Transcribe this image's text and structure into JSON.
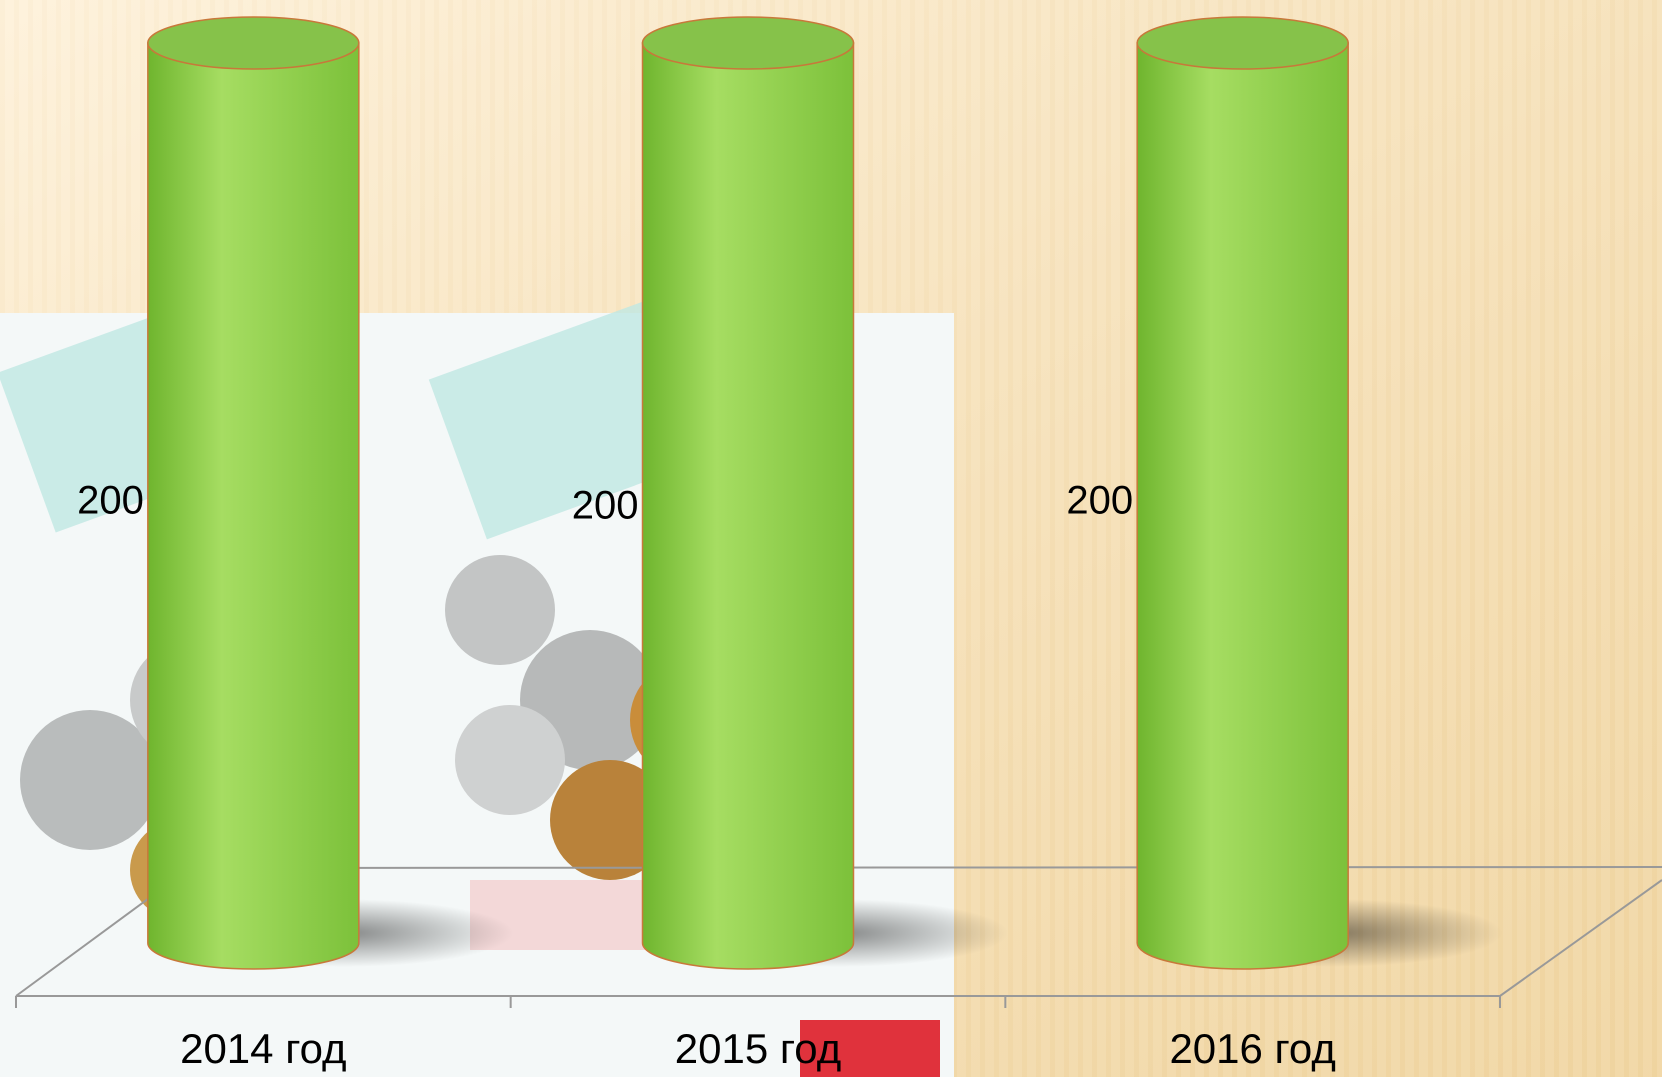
{
  "chart_data": {
    "type": "bar",
    "categories": [
      "2014 год",
      "2015 год",
      "2016 год"
    ],
    "values": [
      200,
      200,
      200
    ],
    "color": "#92d050"
  }
}
